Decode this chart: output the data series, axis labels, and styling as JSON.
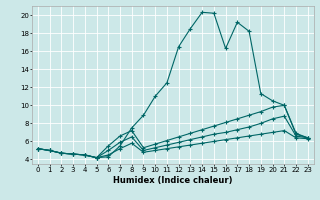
{
  "title": "",
  "xlabel": "Humidex (Indice chaleur)",
  "ylabel": "",
  "background_color": "#cce8e8",
  "grid_color": "#ffffff",
  "line_color": "#006666",
  "xlim": [
    -0.5,
    23.5
  ],
  "ylim": [
    3.5,
    21.0
  ],
  "xticks": [
    0,
    1,
    2,
    3,
    4,
    5,
    6,
    7,
    8,
    9,
    10,
    11,
    12,
    13,
    14,
    15,
    16,
    17,
    18,
    19,
    20,
    21,
    22,
    23
  ],
  "yticks": [
    4,
    6,
    8,
    10,
    12,
    14,
    16,
    18,
    20
  ],
  "line1_x": [
    0,
    1,
    2,
    3,
    4,
    5,
    6,
    7,
    8,
    9,
    10,
    11,
    12,
    13,
    14,
    15,
    16,
    17,
    18,
    19,
    20,
    21,
    22,
    23
  ],
  "line1_y": [
    5.2,
    5.0,
    4.7,
    4.6,
    4.5,
    4.2,
    4.3,
    5.5,
    7.5,
    8.9,
    11.0,
    12.5,
    16.5,
    18.5,
    20.3,
    20.2,
    16.3,
    19.2,
    18.2,
    11.3,
    10.5,
    10.0,
    6.9,
    6.4
  ],
  "line2_x": [
    0,
    1,
    2,
    3,
    4,
    5,
    6,
    7,
    8,
    9,
    10,
    11,
    12,
    13,
    14,
    15,
    16,
    17,
    18,
    19,
    20,
    21,
    22,
    23
  ],
  "line2_y": [
    5.2,
    5.0,
    4.7,
    4.6,
    4.5,
    4.2,
    5.5,
    6.6,
    7.2,
    5.3,
    5.7,
    6.1,
    6.5,
    6.9,
    7.3,
    7.7,
    8.1,
    8.5,
    8.9,
    9.3,
    9.8,
    10.0,
    6.8,
    6.4
  ],
  "line3_x": [
    0,
    1,
    2,
    3,
    4,
    5,
    6,
    7,
    8,
    9,
    10,
    11,
    12,
    13,
    14,
    15,
    16,
    17,
    18,
    19,
    20,
    21,
    22,
    23
  ],
  "line3_y": [
    5.2,
    5.0,
    4.7,
    4.6,
    4.5,
    4.2,
    5.0,
    5.9,
    6.5,
    5.0,
    5.3,
    5.6,
    5.9,
    6.2,
    6.5,
    6.8,
    7.0,
    7.3,
    7.6,
    8.0,
    8.5,
    8.8,
    6.6,
    6.4
  ],
  "line4_x": [
    0,
    1,
    2,
    3,
    4,
    5,
    6,
    7,
    8,
    9,
    10,
    11,
    12,
    13,
    14,
    15,
    16,
    17,
    18,
    19,
    20,
    21,
    22,
    23
  ],
  "line4_y": [
    5.2,
    5.0,
    4.7,
    4.6,
    4.5,
    4.2,
    4.5,
    5.2,
    5.8,
    4.8,
    5.0,
    5.2,
    5.4,
    5.6,
    5.8,
    6.0,
    6.2,
    6.4,
    6.6,
    6.8,
    7.0,
    7.2,
    6.4,
    6.3
  ],
  "tick_labelsize": 5,
  "xlabel_fontsize": 6,
  "marker_size": 3,
  "linewidth": 0.8
}
